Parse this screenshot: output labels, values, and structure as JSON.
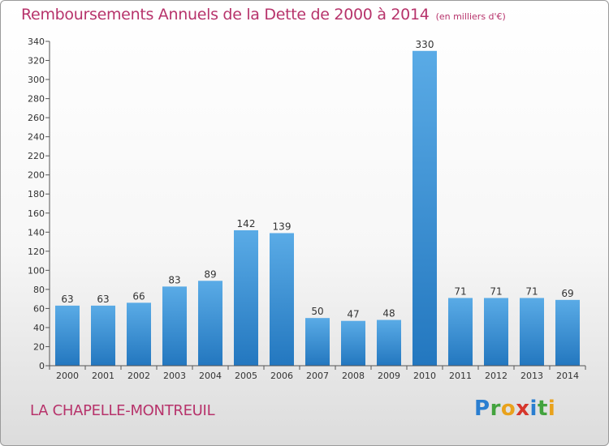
{
  "header": {
    "title": "Remboursements Annuels de la Dette de 2000 à 2014",
    "unit": "(en milliers d'€)"
  },
  "footer": {
    "commune": "LA CHAPELLE-MONTREUIL",
    "logo": {
      "p": "P",
      "r": "r",
      "o": "o",
      "x": "x",
      "i1": "i",
      "t": "t",
      "i2": "i"
    }
  },
  "colors": {
    "title": "#b7336b",
    "bar_light": "#5aabe6",
    "bar_dark": "#2377bf",
    "axis": "#555555",
    "text": "#333333"
  },
  "chart_data": {
    "type": "bar",
    "categories": [
      "2000",
      "2001",
      "2002",
      "2003",
      "2004",
      "2005",
      "2006",
      "2007",
      "2008",
      "2009",
      "2010",
      "2011",
      "2012",
      "2013",
      "2014"
    ],
    "values": [
      63,
      63,
      66,
      83,
      89,
      142,
      139,
      50,
      47,
      48,
      330,
      71,
      71,
      71,
      69
    ],
    "title": "Remboursements Annuels de la Dette de 2000 à 2014",
    "ylabel": "",
    "xlabel": "",
    "ylim": [
      0,
      340
    ],
    "yticks": [
      0,
      20,
      40,
      60,
      80,
      100,
      120,
      140,
      160,
      180,
      200,
      220,
      240,
      260,
      280,
      300,
      320,
      340
    ],
    "grid": false,
    "data_labels": true
  }
}
